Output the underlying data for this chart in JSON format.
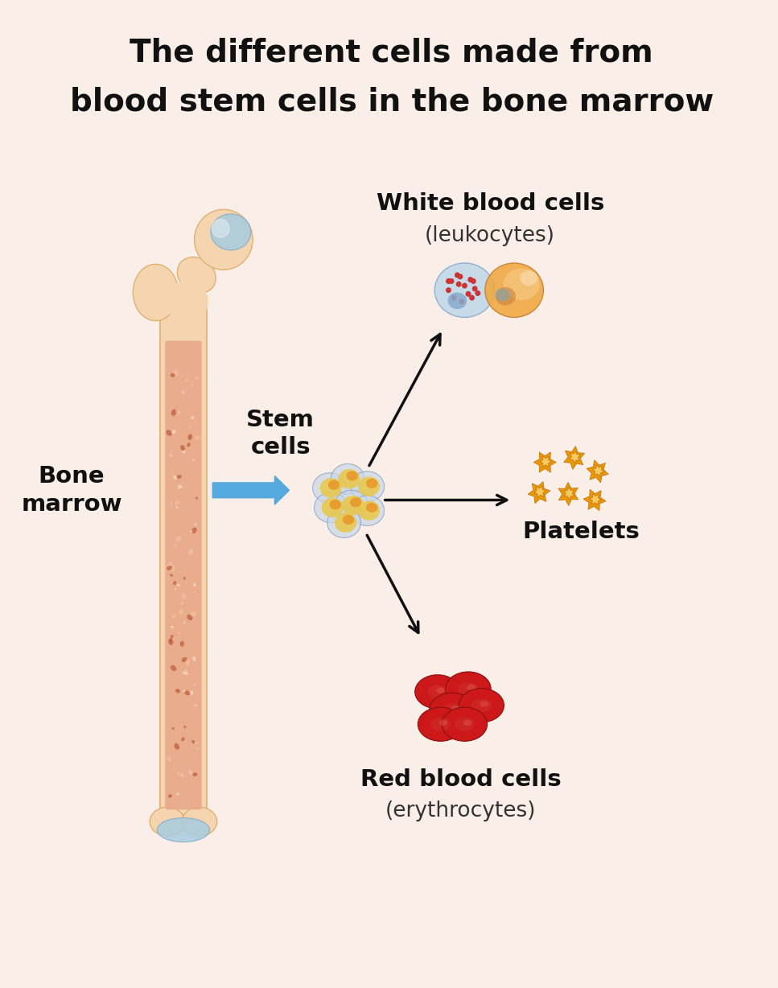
{
  "background_color": "#faeee8",
  "title_line1": "The different cells made from",
  "title_line2": "blood stem cells in the bone marrow",
  "title_fontsize": 28,
  "title_fontweight": "bold",
  "title_color": "#111111",
  "label_bone_marrow": "Bone\nmarrow",
  "label_stem_cells": "Stem\ncells",
  "label_white_cells": "White blood cells",
  "label_white_cells_sub": "(leukocytes)",
  "label_platelets": "Platelets",
  "label_red_cells": "Red blood cells",
  "label_red_cells_sub": "(erythrocytes)",
  "bone_light": "#f5d5b0",
  "bone_mid": "#eec898",
  "bone_dark": "#e0b070",
  "marrow_base": "#e8a888",
  "marrow_spot_light": "#f0c0a0",
  "marrow_spot_dark": "#c06040",
  "joint_blue": "#a8cce0",
  "joint_blue_dark": "#80aac8",
  "arrow_blue": "#55aadd",
  "arrow_black": "#111111",
  "stem_outer": "#c8d8e8",
  "stem_mid": "#e8c850",
  "stem_inner": "#e89020",
  "wbc1_fill": "#c0d8e8",
  "wbc1_spots": "#cc3333",
  "wbc2_fill": "#f0a840",
  "wbc2_fill2": "#f8d090",
  "platelet_fill": "#e8960a",
  "platelet_edge": "#c07000",
  "rbc_fill": "#cc1818",
  "rbc_dark": "#881010",
  "rbc_center": "#dd3030",
  "label_fontsize": 21,
  "sublabel_fontsize": 19,
  "bone_label_fontsize": 21
}
